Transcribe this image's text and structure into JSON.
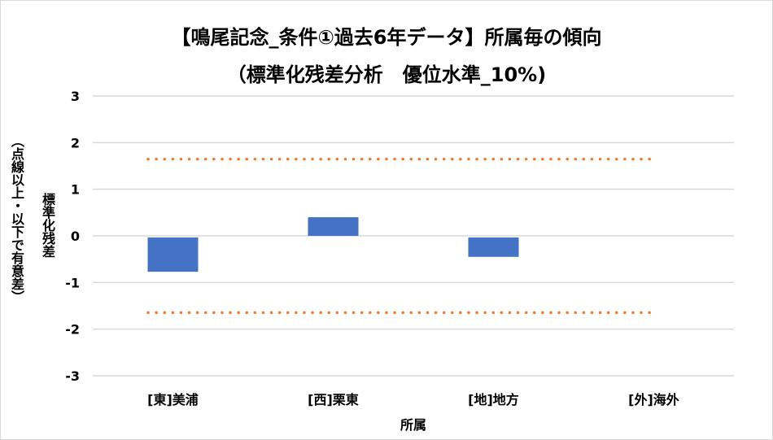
{
  "chart_data": {
    "type": "bar",
    "title": "【鳴尾記念_条件①過去6年データ】所属毎の傾向",
    "subtitle": "（標準化残差分析　優位水準_10%)",
    "xlabel": "所属",
    "ylabel": "標準化残差",
    "ylabel2": "（点線以上・以下で有意差）",
    "categories": [
      "[東]美浦",
      "[西]栗東",
      "[地]地方",
      "[外]海外"
    ],
    "values": [
      -0.77,
      0.4,
      -0.45,
      0
    ],
    "ylim": [
      -3,
      3
    ],
    "yticks": [
      3,
      2,
      1,
      0,
      -1,
      -2,
      -3
    ],
    "threshold_lines": [
      1.645,
      -1.645
    ],
    "grid": true,
    "legend": "none",
    "colors": {
      "bar": "#4472C4",
      "threshold": "#ED7D31",
      "grid": "#D9D9D9"
    }
  }
}
